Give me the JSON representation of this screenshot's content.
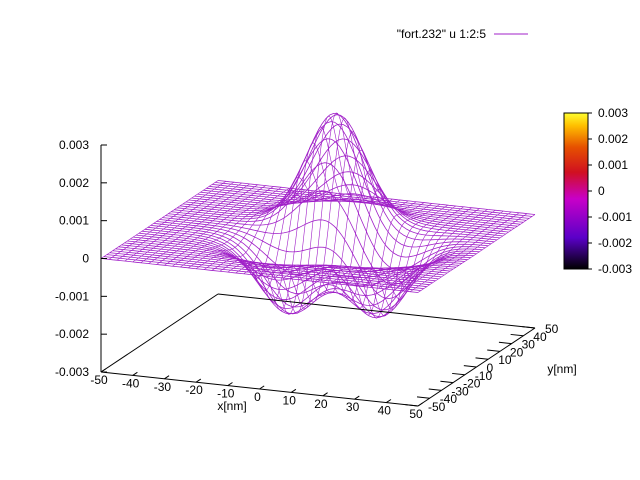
{
  "chart_data": {
    "type": "surface-3d",
    "legend": {
      "label": "\"fort.232\" u 1:2:5",
      "color": "#a020c8",
      "position": "top-right"
    },
    "xlabel": "x[nm]",
    "ylabel": "y[nm]",
    "zlabel": "",
    "x_ticks": [
      "-50",
      "-40",
      "-30",
      "-20",
      "-10",
      "0",
      "10",
      "20",
      "30",
      "40",
      "50"
    ],
    "y_ticks": [
      "-50",
      "-40",
      "-30",
      "-20",
      "-10",
      "0",
      "10",
      "20",
      "30",
      "40",
      "50"
    ],
    "z_ticks": [
      "0.003",
      "0.002",
      "0.001",
      "0",
      "-0.001",
      "-0.002",
      "-0.003"
    ],
    "colorbar_ticks": [
      "0.003",
      "0.002",
      "0.001",
      "0",
      "-0.001",
      "-0.002",
      "-0.003"
    ],
    "xlim": [
      -50,
      50
    ],
    "ylim": [
      -50,
      50
    ],
    "zlim": [
      -0.003,
      0.003
    ],
    "colorbar": {
      "palette": [
        "#000000",
        "#5a00c8",
        "#c800c8",
        "#e65000",
        "#ffd200",
        "#ffff30"
      ],
      "range": [
        -0.003,
        0.003
      ]
    },
    "surface": {
      "line_color": "#a020c8",
      "lobes": [
        {
          "x": 0,
          "y": 15,
          "z": 0.003
        },
        {
          "x": -5,
          "y": -10,
          "z": -0.0019
        },
        {
          "x": 20,
          "y": -3,
          "z": -0.0019
        }
      ],
      "grid_resolution": 41
    }
  }
}
